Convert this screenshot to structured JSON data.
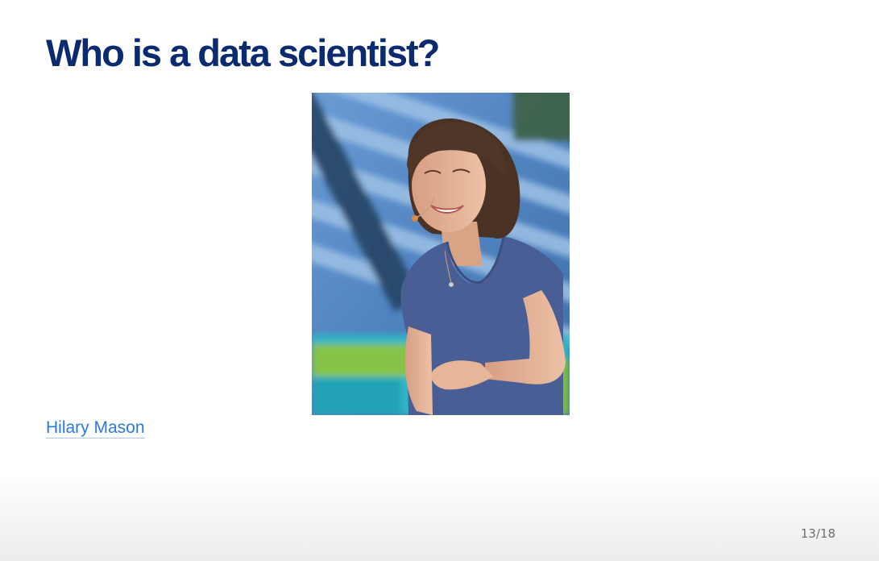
{
  "slide": {
    "title": "Who is a data scientist?",
    "photo": {
      "label": "photo-of-speaker",
      "colors": {
        "backdrop_blue": "#5b8ec9",
        "backdrop_dark": "#2c4f78",
        "backdrop_green": "#7bc043",
        "backdrop_cyan": "#2fb5c4",
        "shirt": "#4a5e96",
        "skin": "#e3b196",
        "hair": "#4a3224"
      }
    },
    "link_text": "Hilary Mason",
    "page_number": "13/18"
  },
  "colors": {
    "title": "#0b2a70",
    "link": "#2a7ae2",
    "page_number": "#707070"
  }
}
